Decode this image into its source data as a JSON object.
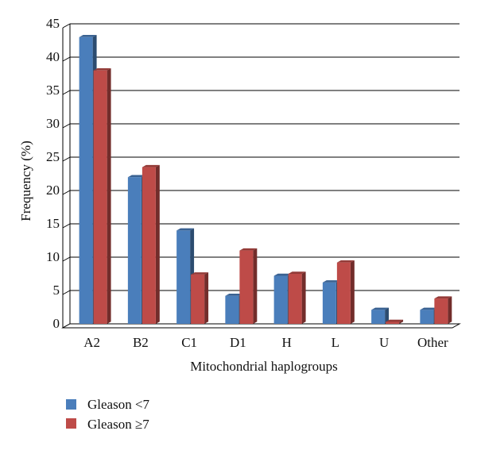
{
  "chart_data": {
    "type": "bar",
    "title": "",
    "xlabel": "Mitochondrial haplogroups",
    "ylabel": "Frequency (%)",
    "categories": [
      "A2",
      "B2",
      "C1",
      "D1",
      "H",
      "L",
      "U",
      "Other"
    ],
    "ylim": [
      0,
      45
    ],
    "yticks": [
      0,
      5,
      10,
      15,
      20,
      25,
      30,
      35,
      40,
      45
    ],
    "grid": true,
    "legend_position": "bottom-left",
    "series": [
      {
        "name": "Gleason <7",
        "color": "#4a7ebb",
        "values": [
          43,
          22,
          14,
          4.2,
          7.2,
          6.2,
          2.1,
          2.1
        ]
      },
      {
        "name": "Gleason ≥7",
        "color": "#be4b48",
        "values": [
          38,
          23.5,
          7.4,
          11,
          7.5,
          9.2,
          0.3,
          3.8
        ]
      }
    ]
  }
}
